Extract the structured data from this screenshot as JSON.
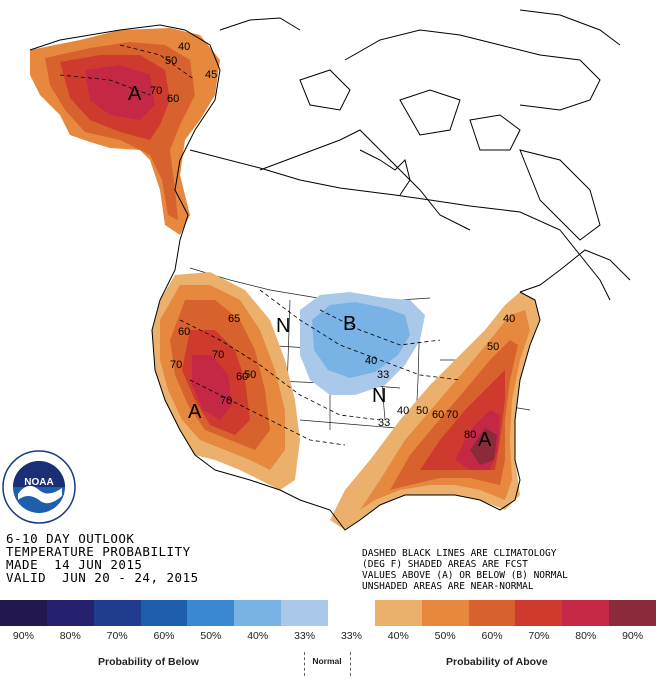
{
  "outlook": {
    "line1": "6-10 DAY OUTLOOK",
    "line2": "TEMPERATURE PROBABILITY",
    "line3": "MADE  14 JUN 2015",
    "line4": "VALID  JUN 20 - 24, 2015"
  },
  "notes": {
    "line1": "DASHED BLACK LINES ARE CLIMATOLOGY",
    "line2": "(DEG F) SHADED AREAS ARE FCST",
    "line3": "VALUES ABOVE (A) OR BELOW (B) NORMAL",
    "line4": "UNSHADED AREAS ARE NEAR-NORMAL"
  },
  "legend": {
    "swatches": [
      {
        "color": "#22174e",
        "label": "90%",
        "category": "below"
      },
      {
        "color": "#25216e",
        "label": "80%",
        "category": "below"
      },
      {
        "color": "#1f3c8f",
        "label": "70%",
        "category": "below"
      },
      {
        "color": "#1d5fad",
        "label": "60%",
        "category": "below"
      },
      {
        "color": "#3a89d0",
        "label": "50%",
        "category": "below"
      },
      {
        "color": "#79b2e5",
        "label": "40%",
        "category": "below"
      },
      {
        "color": "#a9c8ea",
        "label": "33%",
        "category": "below"
      },
      {
        "color": "#ffffff",
        "label": "33%",
        "category": "normal"
      },
      {
        "color": "#ebb16c",
        "label": "40%",
        "category": "above"
      },
      {
        "color": "#e6893f",
        "label": "50%",
        "category": "above"
      },
      {
        "color": "#d8622e",
        "label": "60%",
        "category": "above"
      },
      {
        "color": "#cf3a2e",
        "label": "70%",
        "category": "above"
      },
      {
        "color": "#c52844",
        "label": "80%",
        "category": "above"
      },
      {
        "color": "#8a2a3a",
        "label": "90%",
        "category": "above"
      }
    ],
    "below_caption": "Probability of Below",
    "normal_caption": "Normal",
    "above_caption": "Probability of Above"
  },
  "map_labels": {
    "alaska_A": "A",
    "west_A": "A",
    "southeast_A": "A",
    "midwest_B": "B",
    "north_N": "N",
    "plains_N": "N",
    "contours": [
      "40",
      "50",
      "60",
      "70",
      "45",
      "60",
      "70",
      "60",
      "60",
      "70",
      "50",
      "33",
      "40",
      "33",
      "40",
      "50",
      "60",
      "70",
      "80",
      "40",
      "50",
      "33"
    ]
  },
  "logo": {
    "text": "NOAA"
  }
}
